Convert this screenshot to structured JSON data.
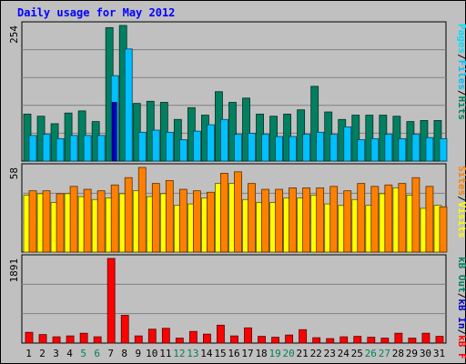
{
  "title": "Daily usage for May 2012",
  "colors": {
    "background": "#c0c0c0",
    "panel_bg": "#c0c0c0",
    "gridline": "#808080",
    "hits": "#008060",
    "files": "#00c0ff",
    "pages": "#00e0ff",
    "visits": "#ffff00",
    "sites": "#ff8000",
    "kb_in": "#0000c0",
    "kb_out": "#008060",
    "kb_f": "#ff0000",
    "title": "#0000ff",
    "day_normal": "#000000",
    "day_weekend": "#00805c"
  },
  "chart_data": {
    "type": "bar",
    "title": "Daily usage for May 2012",
    "categories": [
      "1",
      "2",
      "3",
      "4",
      "5",
      "6",
      "7",
      "8",
      "9",
      "10",
      "11",
      "12",
      "13",
      "14",
      "15",
      "16",
      "17",
      "18",
      "19",
      "20",
      "21",
      "22",
      "23",
      "24",
      "25",
      "26",
      "27",
      "28",
      "29",
      "30",
      "31"
    ],
    "weekend_days": [
      "5",
      "6",
      "12",
      "13",
      "19",
      "20",
      "26",
      "27"
    ],
    "grid": true,
    "panels": [
      {
        "id": "hits-files-pages",
        "scale_label": "254",
        "ylim": [
          0,
          254
        ],
        "legend": [
          {
            "text": "Hits",
            "color": "#008060"
          },
          {
            "text": "Files",
            "color": "#00c0ff"
          },
          {
            "text": "Pages",
            "color": "#00e0ff"
          }
        ],
        "separator": "/",
        "series": [
          {
            "name": "Hits",
            "color": "#008060",
            "values": [
              88,
              84,
              70,
              90,
              94,
              74,
              250,
              254,
              108,
              112,
              110,
              78,
              100,
              86,
              130,
              110,
              118,
              88,
              84,
              88,
              96,
              140,
              92,
              78,
              86,
              86,
              86,
              84,
              74,
              76,
              76
            ]
          },
          {
            "name": "Files",
            "color": "#00c0ff",
            "values": [
              48,
              50,
              42,
              48,
              48,
              48,
              160,
              210,
              54,
              58,
              54,
              40,
              56,
              68,
              78,
              50,
              52,
              50,
              46,
              46,
              50,
              54,
              50,
              64,
              40,
              42,
              50,
              42,
              50,
              44,
              42
            ]
          },
          {
            "name": "Pages",
            "color": "#0000c0",
            "values": [
              0,
              0,
              0,
              0,
              0,
              0,
              110,
              0,
              0,
              0,
              0,
              0,
              0,
              0,
              0,
              0,
              0,
              0,
              0,
              0,
              0,
              0,
              0,
              0,
              0,
              0,
              0,
              0,
              0,
              0,
              0
            ]
          }
        ]
      },
      {
        "id": "visits-sites",
        "scale_label": "58",
        "ylim": [
          0,
          58
        ],
        "legend": [
          {
            "text": "Visits",
            "color": "#ffff00"
          },
          {
            "text": "Sites",
            "color": "#ff8000"
          }
        ],
        "separator": "/",
        "series": [
          {
            "name": "Visits",
            "color": "#ffff00",
            "values": [
              39,
              40,
              34,
              40,
              38,
              36,
              37,
              40,
              42,
              38,
              40,
              32,
              33,
              37,
              47,
              47,
              36,
              34,
              34,
              37,
              37,
              39,
              33,
              32,
              36,
              32,
              40,
              44,
              39,
              30,
              32
            ]
          },
          {
            "name": "Sites",
            "color": "#ff8000",
            "values": [
              42,
              42,
              40,
              45,
              43,
              42,
              46,
              51,
              58,
              47,
              49,
              43,
              42,
              41,
              54,
              55,
              47,
              43,
              43,
              44,
              44,
              44,
              45,
              42,
              47,
              45,
              46,
              47,
              51,
              45,
              31
            ]
          }
        ]
      },
      {
        "id": "kb",
        "scale_label": "1891",
        "ylim": [
          0,
          1891
        ],
        "legend": [
          {
            "text": "kB F",
            "color": "#ff0000"
          },
          {
            "text": "kB In",
            "color": "#0000c0"
          },
          {
            "text": "kB Out",
            "color": "#008060"
          }
        ],
        "separator": "/",
        "series": [
          {
            "name": "kB F",
            "color": "#ff0000",
            "values": [
              240,
              190,
              140,
              160,
              220,
              140,
              1891,
              620,
              160,
              310,
              330,
              110,
              260,
              200,
              400,
              160,
              340,
              150,
              130,
              180,
              300,
              120,
              100,
              140,
              150,
              130,
              110,
              220,
              110,
              220,
              150
            ]
          }
        ]
      }
    ]
  }
}
